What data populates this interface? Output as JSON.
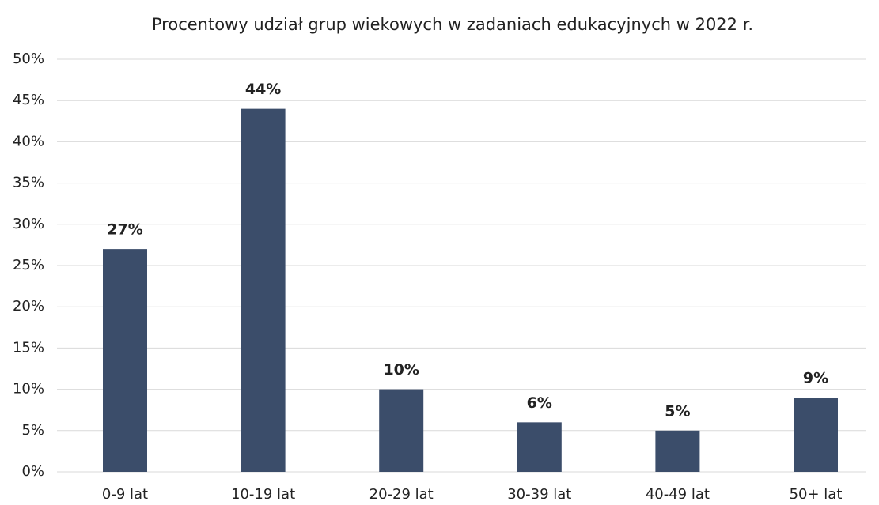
{
  "chart_data": {
    "type": "bar",
    "title": "Procentowy udział grup wiekowych w zadaniach edukacyjnych w 2022 r.",
    "categories": [
      "0-9 lat",
      "10-19 lat",
      "20-29 lat",
      "30-39 lat",
      "40-49 lat",
      "50+ lat"
    ],
    "values": [
      27,
      44,
      10,
      6,
      5,
      9
    ],
    "value_labels": [
      "27%",
      "44%",
      "10%",
      "6%",
      "5%",
      "9%"
    ],
    "color": "#3b4d6a",
    "ylim": [
      0,
      50
    ],
    "yticks": [
      {
        "value": 0,
        "label": "0%"
      },
      {
        "value": 5,
        "label": "5%"
      },
      {
        "value": 10,
        "label": "10%"
      },
      {
        "value": 15,
        "label": "15%"
      },
      {
        "value": 20,
        "label": "20%"
      },
      {
        "value": 25,
        "label": "25%"
      },
      {
        "value": 30,
        "label": "30%"
      },
      {
        "value": 35,
        "label": "35%"
      },
      {
        "value": 40,
        "label": "40%"
      },
      {
        "value": 45,
        "label": "45%"
      },
      {
        "value": 50,
        "label": "50%"
      }
    ],
    "grid": true
  }
}
